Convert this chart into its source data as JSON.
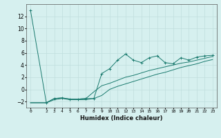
{
  "xlabel": "Humidex (Indice chaleur)",
  "x_values": [
    0,
    2,
    3,
    4,
    5,
    6,
    7,
    8,
    9,
    10,
    11,
    12,
    13,
    14,
    15,
    16,
    17,
    18,
    19,
    20,
    21,
    22,
    23
  ],
  "line1_y": [
    13,
    null,
    null,
    null,
    null,
    null,
    null,
    null,
    null,
    null,
    null,
    null,
    null,
    null,
    null,
    null,
    null,
    null,
    null,
    null,
    null,
    null,
    null
  ],
  "line_main": [
    13,
    -2.2,
    -1.5,
    -1.4,
    -1.6,
    -1.6,
    -1.5,
    -1.5,
    2.6,
    3.4,
    4.8,
    5.8,
    4.8,
    4.4,
    5.2,
    5.5,
    4.4,
    4.2,
    5.2,
    4.8,
    5.3,
    5.5,
    5.6
  ],
  "line_upper": [
    -2.2,
    -2.2,
    -1.5,
    -1.4,
    -1.6,
    -1.6,
    -1.5,
    -0.4,
    0.6,
    1.0,
    1.5,
    2.0,
    2.3,
    2.7,
    3.1,
    3.4,
    3.7,
    4.0,
    4.3,
    4.5,
    4.8,
    5.1,
    5.4
  ],
  "line_lower": [
    -2.2,
    -2.2,
    -1.7,
    -1.5,
    -1.7,
    -1.7,
    -1.7,
    -1.5,
    -1.0,
    0.0,
    0.5,
    0.9,
    1.3,
    1.7,
    2.1,
    2.5,
    2.8,
    3.2,
    3.6,
    3.9,
    4.2,
    4.6,
    4.9
  ],
  "line_color": "#1a7a6e",
  "bg_color": "#d6f0ef",
  "grid_color": "#c0dedd",
  "ylim": [
    -3,
    14
  ],
  "xlim": [
    -0.5,
    23.5
  ],
  "yticks": [
    -2,
    0,
    2,
    4,
    6,
    8,
    10,
    12
  ],
  "xtick_vals": [
    0,
    2,
    3,
    4,
    5,
    6,
    7,
    8,
    9,
    10,
    11,
    12,
    13,
    14,
    15,
    16,
    17,
    18,
    19,
    20,
    21,
    22,
    23
  ],
  "xtick_labels": [
    "0",
    "2",
    "3",
    "4",
    "5",
    "6",
    "7",
    "8",
    "9",
    "10",
    "11",
    "12",
    "13",
    "14",
    "15",
    "16",
    "17",
    "18",
    "19",
    "20",
    "21",
    "22",
    "23"
  ]
}
